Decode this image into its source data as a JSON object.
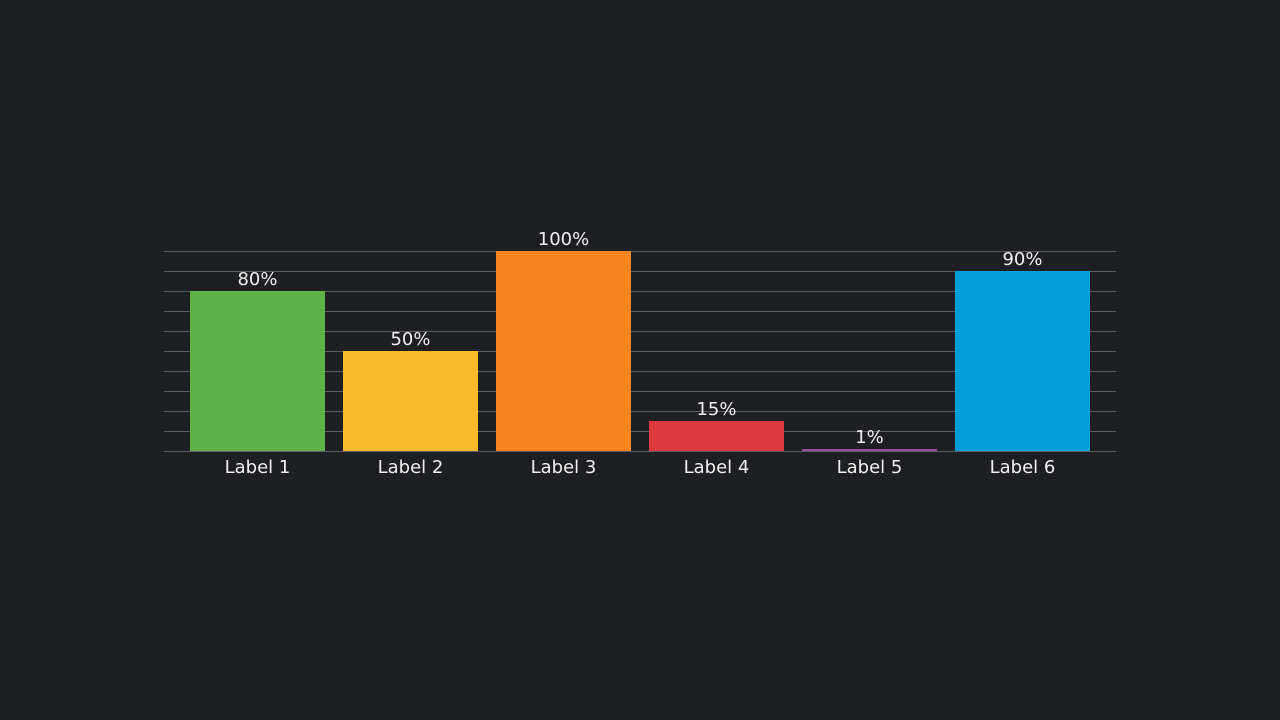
{
  "chart_data": {
    "type": "bar",
    "categories": [
      "Label 1",
      "Label 2",
      "Label 3",
      "Label 4",
      "Label 5",
      "Label 6"
    ],
    "values": [
      80,
      50,
      100,
      15,
      1,
      90
    ],
    "value_labels": [
      "80%",
      "50%",
      "100%",
      "15%",
      "1%",
      "90%"
    ],
    "colors": [
      "#5fb246",
      "#fbb92c",
      "#f7841e",
      "#dd3a3f",
      "#9b4aa0",
      "#04a0de"
    ],
    "ylim": [
      0,
      100
    ],
    "grid": true,
    "legend": "none"
  },
  "colors": {
    "background": "#1e1f22",
    "gridline": "#5b5d62",
    "text": "#f0f0f0"
  }
}
